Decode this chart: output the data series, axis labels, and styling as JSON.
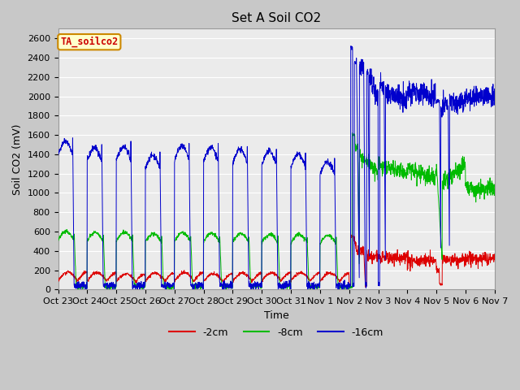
{
  "title": "Set A Soil CO2",
  "ylabel": "Soil CO2 (mV)",
  "xlabel": "Time",
  "legend_label": "TA_soilco2",
  "series_labels": [
    "-2cm",
    "-8cm",
    "-16cm"
  ],
  "series_colors": [
    "#dd0000",
    "#00bb00",
    "#0000cc"
  ],
  "ylim": [
    0,
    2700
  ],
  "yticks": [
    0,
    200,
    400,
    600,
    800,
    1000,
    1200,
    1400,
    1600,
    1800,
    2000,
    2200,
    2400,
    2600
  ],
  "xtick_labels": [
    "Oct 23",
    "Oct 24",
    "Oct 25",
    "Oct 26",
    "Oct 27",
    "Oct 28",
    "Oct 29",
    "Oct 30",
    "Oct 31",
    "Nov 1",
    "Nov 2",
    "Nov 3",
    "Nov 4",
    "Nov 5",
    "Nov 6",
    "Nov 7"
  ],
  "plot_bg_color": "#ebebeb",
  "fig_bg_color": "#c8c8c8",
  "legend_box_facecolor": "#ffffcc",
  "legend_box_edgecolor": "#cc8800",
  "title_fontsize": 11,
  "axis_fontsize": 9,
  "tick_fontsize": 8
}
